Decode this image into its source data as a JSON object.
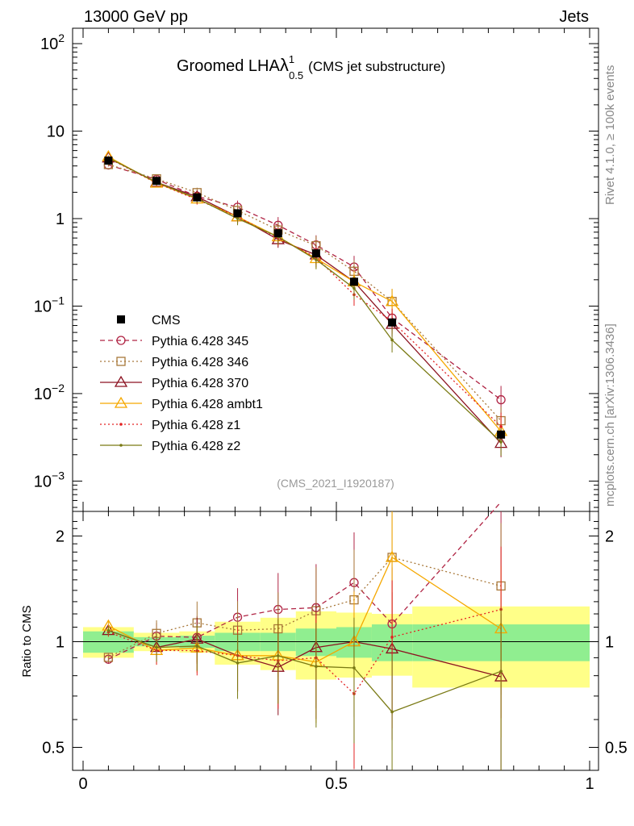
{
  "header": {
    "energy_label": "13000 GeV pp",
    "category_label": "Jets",
    "title_prefix": "Groomed LHA",
    "title_lambda": "λ",
    "title_superscript": "1",
    "title_subscript": "0.5",
    "title_suffix": "(CMS jet substructure)",
    "analysis_id": "(CMS_2021_I1920187)"
  },
  "side": {
    "rivet_label": "Rivet 4.1.0, ≥ 100k events",
    "source_label": "mcplots.cern.ch [arXiv:1306.3436]"
  },
  "chart_data": {
    "type": "line",
    "x_range": [
      0,
      1
    ],
    "x_ticks": [
      "0",
      "0.5",
      "1"
    ],
    "main": {
      "scale": "log",
      "ylim": [
        0.00045,
        150
      ],
      "y_ticks": [
        {
          "value": 100,
          "base": "10",
          "exp": "2"
        },
        {
          "value": 10,
          "text": "10"
        },
        {
          "value": 1,
          "text": "1"
        },
        {
          "value": 0.1,
          "base": "10",
          "exp": "−1"
        },
        {
          "value": 0.01,
          "base": "10",
          "exp": "−2"
        },
        {
          "value": 0.001,
          "base": "10",
          "exp": "−3"
        }
      ]
    },
    "ratio": {
      "ylabel": "Ratio to CMS",
      "scale": "log",
      "ylim": [
        0.43,
        2.35
      ],
      "y_ticks": [
        {
          "value": 0.5,
          "text": "0.5"
        },
        {
          "value": 1,
          "text": "1"
        },
        {
          "value": 2,
          "text": "2"
        }
      ]
    },
    "x_bins": [
      0.0,
      0.1,
      0.19,
      0.26,
      0.35,
      0.42,
      0.5,
      0.57,
      0.65,
      1.0
    ],
    "x_centers": [
      0.05,
      0.145,
      0.225,
      0.305,
      0.385,
      0.46,
      0.535,
      0.61,
      0.825
    ],
    "data": {
      "name": "CMS",
      "values": [
        4.6,
        2.7,
        1.75,
        1.15,
        0.68,
        0.4,
        0.19,
        0.065,
        0.0034
      ],
      "band_inner": [
        0.07,
        0.03,
        0.04,
        0.06,
        0.06,
        0.09,
        0.1,
        0.12,
        0.12
      ],
      "band_outer": [
        0.1,
        0.06,
        0.07,
        0.14,
        0.17,
        0.22,
        0.21,
        0.2,
        0.26
      ]
    },
    "series": [
      {
        "name": "Pythia 6.428 345",
        "color": "#b02444",
        "dash": "6,4",
        "marker": "circle",
        "values": [
          4.1,
          2.8,
          1.8,
          1.35,
          0.84,
          0.5,
          0.28,
          0.073,
          0.0085
        ]
      },
      {
        "name": "Pythia 6.428 346",
        "color": "#a8783a",
        "dash": "2,3",
        "marker": "square",
        "values": [
          4.15,
          2.85,
          1.98,
          1.24,
          0.74,
          0.49,
          0.25,
          0.113,
          0.0049
        ]
      },
      {
        "name": "Pythia 6.428 370",
        "color": "#8c1220",
        "dash": "",
        "marker": "triangle",
        "values": [
          4.95,
          2.6,
          1.78,
          1.05,
          0.575,
          0.385,
          0.19,
          0.062,
          0.0027
        ]
      },
      {
        "name": "Pythia 6.428 ambt1",
        "color": "#f5a800",
        "dash": "",
        "marker": "triangle",
        "values": [
          5.1,
          2.55,
          1.68,
          1.05,
          0.62,
          0.35,
          0.19,
          0.113,
          0.0037
        ]
      },
      {
        "name": "Pythia 6.428 z1",
        "color": "#e32222",
        "dash": "2,3",
        "marker": "dot",
        "values": [
          4.9,
          2.55,
          1.65,
          1.05,
          0.6,
          0.36,
          0.135,
          0.067,
          0.0042
        ]
      },
      {
        "name": "Pythia 6.428 z2",
        "color": "#7a7a14",
        "dash": "",
        "marker": "dot",
        "values": [
          4.95,
          2.6,
          1.7,
          1.0,
          0.62,
          0.34,
          0.16,
          0.041,
          0.0028
        ]
      }
    ]
  }
}
